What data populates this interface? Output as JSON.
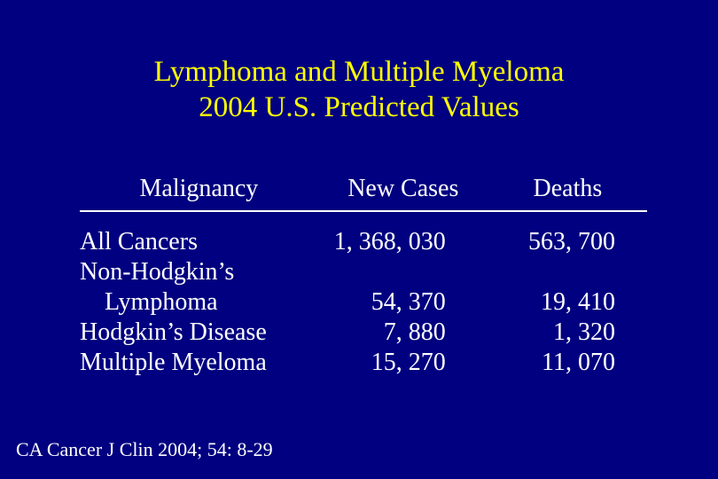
{
  "slide": {
    "background_color": "#000080",
    "title_color": "#ffff00",
    "text_color": "#ffffff",
    "title_fontsize": 33,
    "body_fontsize": 28,
    "citation_fontsize": 22,
    "font_family": "Times New Roman",
    "title_line1": "Lymphoma and Multiple Myeloma",
    "title_line2": "2004 U.S. Predicted Values",
    "table": {
      "headers": {
        "malignancy": "Malignancy",
        "new_cases": "New Cases",
        "deaths": "Deaths"
      },
      "rows": [
        {
          "malignancy_lines": [
            "All Cancers"
          ],
          "new_cases": "1, 368, 030",
          "deaths": "563, 700",
          "indent": false
        },
        {
          "malignancy_lines": [
            "Non-Hodgkin’s",
            "Lymphoma"
          ],
          "new_cases": "54, 370",
          "deaths": "19, 410",
          "indent": true
        },
        {
          "malignancy_lines": [
            "Hodgkin’s Disease"
          ],
          "new_cases": "7, 880",
          "deaths": "1, 320",
          "indent": false
        },
        {
          "malignancy_lines": [
            "Multiple Myeloma"
          ],
          "new_cases": "15, 270",
          "deaths": "11, 070",
          "indent": false
        }
      ]
    },
    "citation": "CA Cancer J Clin 2004; 54: 8-29"
  }
}
